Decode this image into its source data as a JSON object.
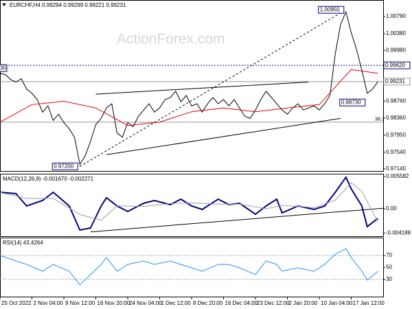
{
  "chart_data": [
    {
      "type": "line",
      "title": "EURCHF,H4 0.99294 0.99299 0.99221 0.99231",
      "watermark": "ActionForex.com",
      "xlim": [
        0,
        72
      ],
      "ylim": [
        0.97074,
        1.01185
      ],
      "yticks": [
        {
          "value": 1.0079,
          "label": "1.00790"
        },
        {
          "value": 1.0038,
          "label": "1.00380"
        },
        {
          "value": 0.9998,
          "label": "0.99980"
        },
        {
          "value": 0.9876,
          "label": "0.98760"
        },
        {
          "value": 0.9836,
          "label": "0.98360"
        },
        {
          "value": 0.9795,
          "label": "0.97950"
        },
        {
          "value": 0.9754,
          "label": "0.97540"
        },
        {
          "value": 0.9714,
          "label": "0.97140"
        }
      ],
      "lines": [
        {
          "color": "#000000",
          "width": 1,
          "values": [
            0.9943,
            0.994,
            0.9928,
            0.9922,
            0.993,
            0.9905,
            0.9895,
            0.988,
            0.985,
            0.9865,
            0.983,
            0.9845,
            0.9825,
            0.981,
            0.979,
            0.9725,
            0.9745,
            0.978,
            0.982,
            0.9835,
            0.986,
            0.987,
            0.98,
            0.979,
            0.9825,
            0.9815,
            0.984,
            0.9855,
            0.987,
            0.985,
            0.986,
            0.988,
            0.9885,
            0.99,
            0.9875,
            0.989,
            0.9865,
            0.987,
            0.985,
            0.987,
            0.9885,
            0.987,
            0.988,
            0.9865,
            0.988,
            0.986,
            0.984,
            0.9835,
            0.9855,
            0.988,
            0.99,
            0.9885,
            0.987,
            0.9855,
            0.9845,
            0.986,
            0.987,
            0.9855,
            0.986,
            0.9865,
            0.9855,
            0.987,
            0.989,
            0.999,
            1.006,
            1.009,
            1.004,
            1.0,
            0.995,
            0.9895,
            0.9905,
            0.9923
          ]
        },
        {
          "color": "#e00000",
          "width": 1,
          "x": [
            0,
            6,
            12,
            18,
            24,
            30,
            36,
            42,
            48,
            54,
            60,
            66,
            71
          ],
          "values": [
            0.9826,
            0.9868,
            0.9876,
            0.986,
            0.9818,
            0.9826,
            0.9851,
            0.986,
            0.9851,
            0.986,
            0.9868,
            0.9952,
            0.9943
          ]
        }
      ],
      "trendlines": [
        {
          "color": "#000000",
          "dashed": false,
          "x": [
            18,
            58
          ],
          "values": [
            0.9893,
            0.9922
          ]
        },
        {
          "color": "#000000",
          "dashed": false,
          "x": [
            20,
            64
          ],
          "values": [
            0.9748,
            0.9835
          ]
        },
        {
          "color": "#000000",
          "dashed": true,
          "x": [
            15,
            65
          ],
          "values": [
            0.972,
            1.0095
          ]
        }
      ],
      "levels": [
        {
          "value": 0.9962,
          "label": "0.99620",
          "color": "#000080",
          "dashed": true
        },
        {
          "value": 0.99231,
          "label": "0.99231",
          "color": "#999999",
          "dashed": false
        },
        {
          "value": 0.9826,
          "label": "38.2",
          "color": "#999999",
          "dashed": false
        }
      ],
      "left_label": "30",
      "annotations": [
        {
          "x": 65,
          "value": 1.0095,
          "label": "1.00950"
        },
        {
          "x": 15,
          "value": 0.972,
          "label": "0.97200"
        },
        {
          "x": 69,
          "value": 0.9873,
          "label": "0.98730"
        }
      ]
    },
    {
      "type": "line",
      "title": "MACD(12,26,9) -0.001670 -0.002271",
      "xlim": [
        0,
        72
      ],
      "ylim": [
        -0.00487,
        0.00606
      ],
      "yticks": [
        0.005582,
        {
          "value": 0,
          "label": "0.00"
        },
        -0.004188
      ],
      "lines": [
        {
          "color": "#00007f",
          "width": 2,
          "x": [
            0,
            3,
            5,
            8,
            10,
            13,
            15,
            17,
            19,
            20,
            22,
            24,
            27,
            29,
            32,
            34,
            36,
            38,
            41,
            43,
            45,
            48,
            50,
            52,
            53,
            56,
            59,
            61,
            63,
            65,
            66,
            68,
            69,
            71
          ],
          "values": [
            0.00285,
            0.00261,
            0.00048,
            0.00143,
            0.00285,
            0.00048,
            -0.00368,
            -0.00333,
            0.00048,
            0.0019,
            0.00048,
            -0.00048,
            0.00095,
            0.00143,
            0.00071,
            0.00166,
            0.00048,
            -0.00012,
            0.00166,
            0.00071,
            0.00095,
            -0.00095,
            0.00048,
            0.00166,
            -0.00071,
            0.00048,
            -0.00012,
            0.00048,
            0.00285,
            0.00546,
            0.00345,
            0.00048,
            -0.00309,
            -0.00167
          ]
        },
        {
          "color": "#a0a0a0",
          "width": 1,
          "x": [
            0,
            5,
            10,
            15,
            19,
            22,
            27,
            32,
            36,
            41,
            45,
            50,
            53,
            59,
            63,
            66,
            68,
            71
          ],
          "values": [
            0.0028,
            0.0018,
            0.0018,
            -0.001,
            -0.002,
            0.0005,
            0.0004,
            0.0009,
            0.001,
            0.0008,
            0.0008,
            0.0,
            0.0006,
            0.0002,
            0.0015,
            0.0045,
            0.003,
            -0.00227
          ]
        }
      ],
      "trendlines": [
        {
          "color": "#000000",
          "dashed": false,
          "x": [
            17,
            72
          ],
          "values": [
            -0.004,
            0.0001
          ]
        }
      ]
    },
    {
      "type": "line",
      "title": "RSI(14) 43.4264",
      "xlim": [
        0,
        72
      ],
      "ylim": [
        0,
        100
      ],
      "yticks": [
        70,
        50,
        30
      ],
      "levels": [
        {
          "value": 70,
          "color": "#999999",
          "dashed": true
        },
        {
          "value": 30,
          "color": "#999999",
          "dashed": true
        }
      ],
      "lines": [
        {
          "color": "#1e90ff",
          "width": 1,
          "x": [
            0,
            3,
            5,
            8,
            10,
            13,
            14,
            15,
            17,
            19,
            20,
            22,
            24,
            27,
            29,
            32,
            34,
            36,
            38,
            41,
            43,
            45,
            48,
            50,
            52,
            53,
            56,
            59,
            61,
            63,
            65,
            66,
            68,
            69,
            71
          ],
          "values": [
            70,
            60.9,
            55.1,
            43.7,
            55.1,
            43.7,
            32.3,
            20.9,
            38.0,
            55.1,
            66.6,
            43.7,
            55.1,
            60.9,
            55.1,
            60.9,
            55.1,
            49.4,
            43.7,
            55.1,
            55.1,
            49.4,
            38.0,
            60.9,
            55.1,
            43.7,
            49.4,
            43.7,
            55.1,
            72.3,
            81.4,
            66.6,
            43.7,
            28.9,
            43.4
          ]
        }
      ],
      "xticks": [
        {
          "value": 0,
          "label": "25 Oct 2022"
        },
        {
          "value": 6,
          "label": "2 Nov 04:00"
        },
        {
          "value": 12,
          "label": "9 Nov 12:00"
        },
        {
          "value": 18,
          "label": "16 Nov 20:00"
        },
        {
          "value": 24,
          "label": "24 Nov 04:00"
        },
        {
          "value": 30,
          "label": "1 Dec 12:00"
        },
        {
          "value": 36,
          "label": "8 Dec 20:00"
        },
        {
          "value": 42,
          "label": "16 Dec 04:00"
        },
        {
          "value": 48,
          "label": "23 Dec 12:00"
        },
        {
          "value": 54,
          "label": "2 Jan 20:00"
        },
        {
          "value": 60,
          "label": "10 Jan 04:00"
        },
        {
          "value": 66,
          "label": "17 Jan 12:00"
        }
      ]
    }
  ]
}
